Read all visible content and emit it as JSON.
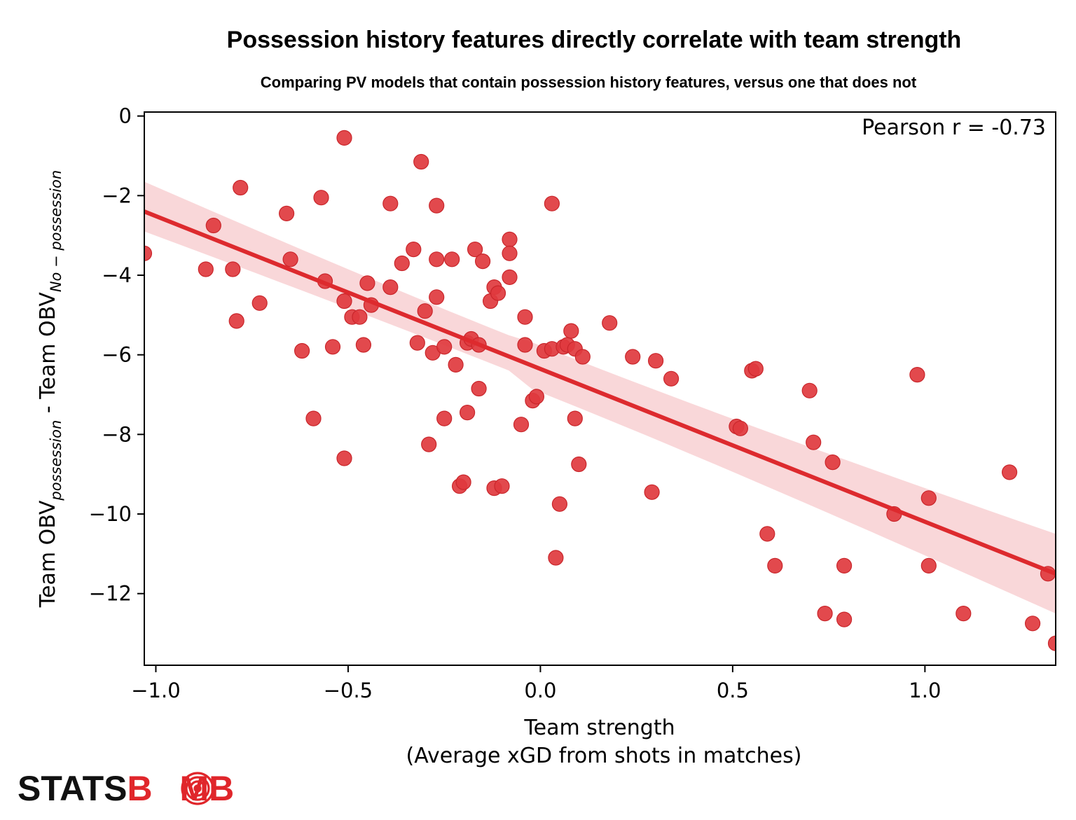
{
  "chart_data": {
    "type": "scatter",
    "title": "Possession history features directly correlate with team strength",
    "subtitle": "Comparing PV models that contain possession history features, versus one that does not",
    "xlabel_line1": "Team strength",
    "xlabel_line2": "(Average xGD from shots in matches)",
    "ylabel": {
      "prefix": "Team OBV",
      "sub1": "possession",
      "middle": " - Team OBV",
      "sub2": "No − possession"
    },
    "xlim": [
      -1.03,
      1.34
    ],
    "ylim": [
      -13.8,
      0.1
    ],
    "xticks": [
      {
        "value": -1.0,
        "label": "−1.0"
      },
      {
        "value": -0.5,
        "label": "−0.5"
      },
      {
        "value": 0.0,
        "label": "0.0"
      },
      {
        "value": 0.5,
        "label": "0.5"
      },
      {
        "value": 1.0,
        "label": "1.0"
      }
    ],
    "yticks": [
      {
        "value": 0,
        "label": "0"
      },
      {
        "value": -2,
        "label": "−2"
      },
      {
        "value": -4,
        "label": "−4"
      },
      {
        "value": -6,
        "label": "−6"
      },
      {
        "value": -8,
        "label": "−8"
      },
      {
        "value": -10,
        "label": "−10"
      },
      {
        "value": -12,
        "label": "−12"
      }
    ],
    "annotation": "Pearson r = -0.73",
    "annotation_position": "top-right",
    "grid": false,
    "point_color": "#e03a3e",
    "line_color": "#dd2a2e",
    "band_color": "#f6c6c9",
    "regression": {
      "x": [
        -1.03,
        1.34
      ],
      "y": [
        -2.4,
        -11.5
      ],
      "band_lower": [
        -2.9,
        -12.5
      ],
      "band_upper": [
        -1.65,
        -10.5
      ]
    },
    "points": [
      [
        -1.03,
        -3.45
      ],
      [
        -0.87,
        -3.85
      ],
      [
        -0.85,
        -2.75
      ],
      [
        -0.8,
        -3.85
      ],
      [
        -0.79,
        -5.15
      ],
      [
        -0.78,
        -1.8
      ],
      [
        -0.73,
        -4.7
      ],
      [
        -0.66,
        -2.45
      ],
      [
        -0.65,
        -3.6
      ],
      [
        -0.62,
        -5.9
      ],
      [
        -0.59,
        -7.6
      ],
      [
        -0.57,
        -2.05
      ],
      [
        -0.56,
        -4.15
      ],
      [
        -0.54,
        -5.8
      ],
      [
        -0.51,
        -0.55
      ],
      [
        -0.51,
        -4.65
      ],
      [
        -0.51,
        -8.6
      ],
      [
        -0.49,
        -5.05
      ],
      [
        -0.47,
        -5.05
      ],
      [
        -0.46,
        -5.75
      ],
      [
        -0.45,
        -4.2
      ],
      [
        -0.44,
        -4.75
      ],
      [
        -0.39,
        -2.2
      ],
      [
        -0.39,
        -4.3
      ],
      [
        -0.36,
        -3.7
      ],
      [
        -0.33,
        -3.35
      ],
      [
        -0.32,
        -5.7
      ],
      [
        -0.31,
        -1.15
      ],
      [
        -0.3,
        -4.9
      ],
      [
        -0.29,
        -8.25
      ],
      [
        -0.28,
        -5.95
      ],
      [
        -0.27,
        -2.25
      ],
      [
        -0.27,
        -3.6
      ],
      [
        -0.27,
        -4.55
      ],
      [
        -0.25,
        -5.8
      ],
      [
        -0.25,
        -7.6
      ],
      [
        -0.23,
        -3.6
      ],
      [
        -0.22,
        -6.25
      ],
      [
        -0.21,
        -9.3
      ],
      [
        -0.2,
        -9.2
      ],
      [
        -0.19,
        -5.7
      ],
      [
        -0.19,
        -7.45
      ],
      [
        -0.18,
        -5.6
      ],
      [
        -0.17,
        -3.35
      ],
      [
        -0.16,
        -5.75
      ],
      [
        -0.16,
        -6.85
      ],
      [
        -0.15,
        -3.65
      ],
      [
        -0.13,
        -4.65
      ],
      [
        -0.12,
        -4.3
      ],
      [
        -0.12,
        -9.35
      ],
      [
        -0.11,
        -4.45
      ],
      [
        -0.1,
        -9.3
      ],
      [
        -0.08,
        -3.1
      ],
      [
        -0.08,
        -3.45
      ],
      [
        -0.08,
        -4.05
      ],
      [
        -0.05,
        -7.75
      ],
      [
        -0.04,
        -5.05
      ],
      [
        -0.04,
        -5.75
      ],
      [
        -0.02,
        -7.15
      ],
      [
        -0.01,
        -7.05
      ],
      [
        0.01,
        -5.9
      ],
      [
        0.03,
        -5.85
      ],
      [
        0.03,
        -2.2
      ],
      [
        0.04,
        -11.1
      ],
      [
        0.05,
        -9.75
      ],
      [
        0.06,
        -5.8
      ],
      [
        0.07,
        -5.75
      ],
      [
        0.08,
        -5.4
      ],
      [
        0.09,
        -5.85
      ],
      [
        0.09,
        -7.6
      ],
      [
        0.1,
        -8.75
      ],
      [
        0.11,
        -6.05
      ],
      [
        0.18,
        -5.2
      ],
      [
        0.24,
        -6.05
      ],
      [
        0.29,
        -9.45
      ],
      [
        0.3,
        -6.15
      ],
      [
        0.34,
        -6.6
      ],
      [
        0.51,
        -7.8
      ],
      [
        0.52,
        -7.85
      ],
      [
        0.55,
        -6.4
      ],
      [
        0.56,
        -6.35
      ],
      [
        0.59,
        -10.5
      ],
      [
        0.61,
        -11.3
      ],
      [
        0.7,
        -6.9
      ],
      [
        0.71,
        -8.2
      ],
      [
        0.74,
        -12.5
      ],
      [
        0.76,
        -8.7
      ],
      [
        0.79,
        -11.3
      ],
      [
        0.79,
        -12.65
      ],
      [
        0.92,
        -10.0
      ],
      [
        0.98,
        -6.5
      ],
      [
        1.01,
        -9.6
      ],
      [
        1.01,
        -11.3
      ],
      [
        1.1,
        -12.5
      ],
      [
        1.22,
        -8.95
      ],
      [
        1.28,
        -12.75
      ],
      [
        1.32,
        -11.5
      ],
      [
        1.34,
        -13.25
      ]
    ]
  },
  "logo": {
    "text_part1": "STATS",
    "text_part2": "B",
    "text_part3": "MB",
    "text_color": "#111111",
    "accent_color": "#e0262b"
  }
}
